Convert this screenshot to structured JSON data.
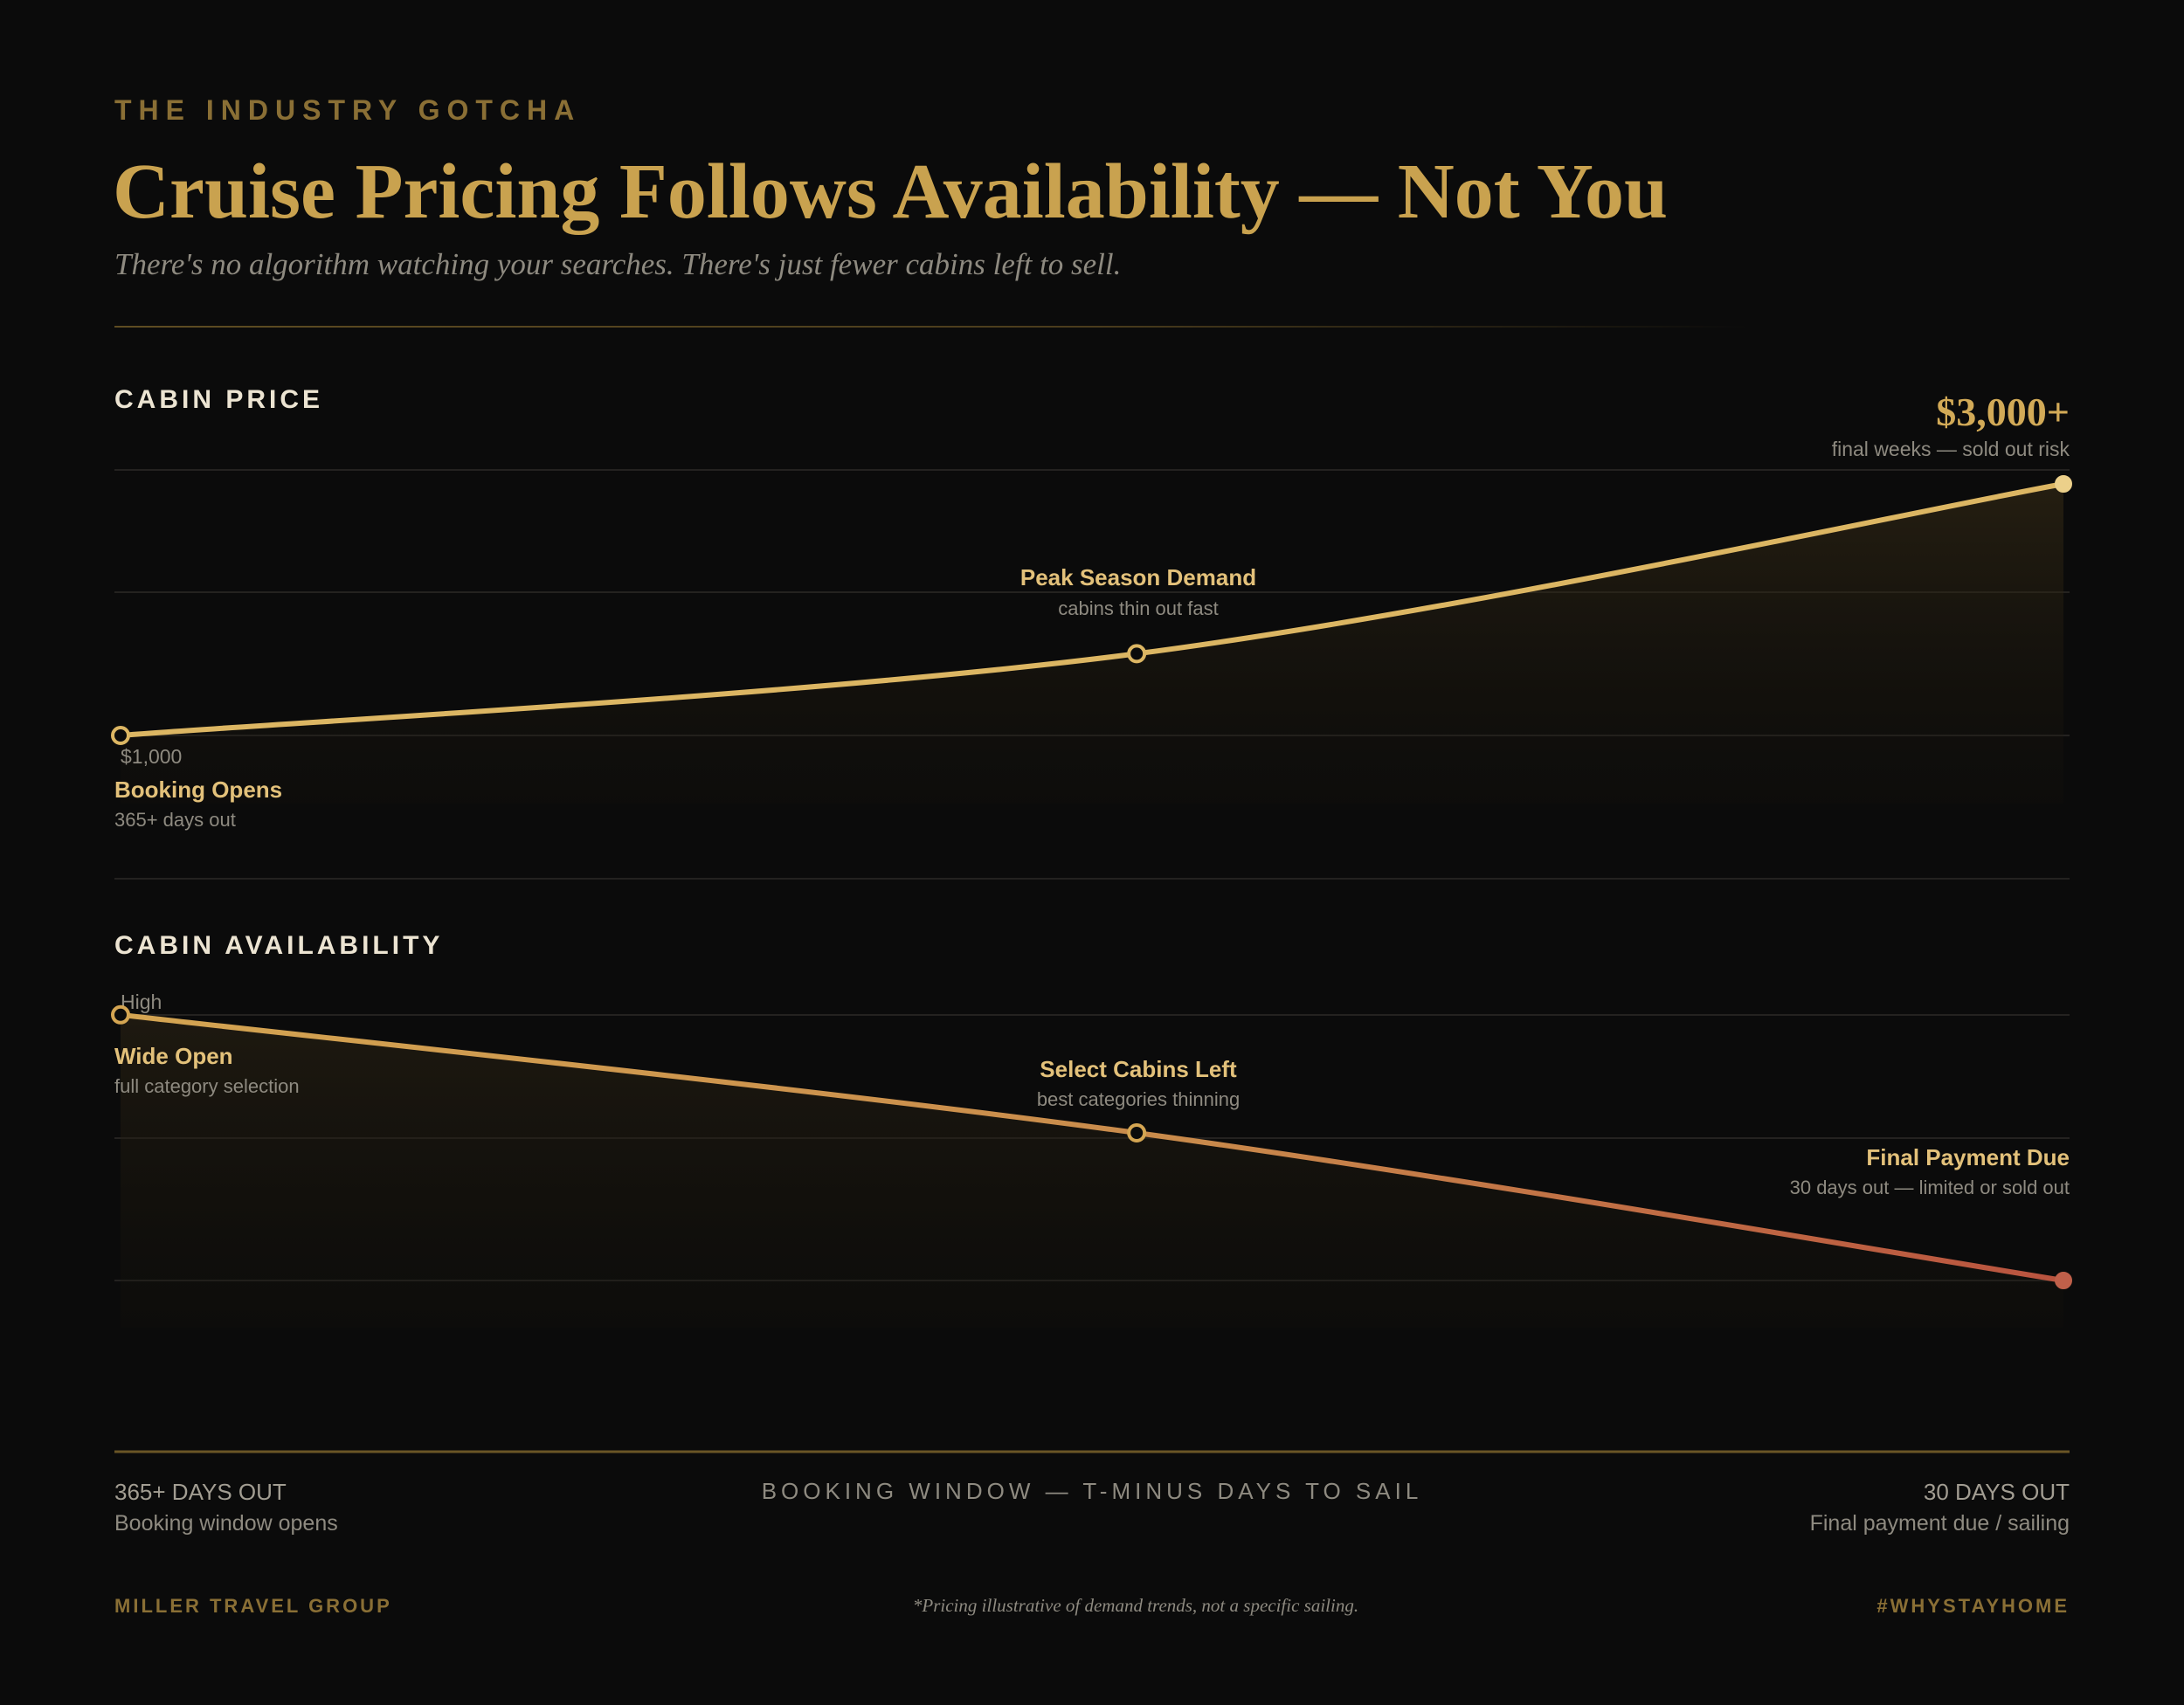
{
  "header": {
    "eyebrow": "THE INDUSTRY GOTCHA",
    "title": "Cruise Pricing Follows Availability — Not You",
    "subtitle": "There's no algorithm watching your searches. There's just fewer cabins left to sell."
  },
  "colors": {
    "gold": "#c9a24f",
    "gold_light": "#e3c17a",
    "rust": "#c0604a",
    "background": "#0b0b0b",
    "muted": "#8e8a80"
  },
  "chart_data": [
    {
      "type": "line",
      "title": "CABIN PRICE",
      "x": [
        0,
        0.523,
        1
      ],
      "values": [
        1000,
        1650,
        3000
      ],
      "y_tick_labels": {
        "low": "$1,000",
        "high_value": "$3,000+",
        "high_note": "final weeks — sold out risk"
      },
      "annotations": [
        {
          "label": "Booking Opens",
          "note": "365+ days out"
        },
        {
          "label": "Peak Season Demand",
          "note": "cabins thin out fast"
        }
      ],
      "grid": true
    },
    {
      "type": "line",
      "title": "CABIN AVAILABILITY",
      "x": [
        0,
        0.523,
        1
      ],
      "values": [
        0.9,
        0.5,
        0
      ],
      "y_tick_labels": {
        "high": "High"
      },
      "annotations": [
        {
          "label": "Wide Open",
          "note": "full category selection"
        },
        {
          "label": "Select Cabins Left",
          "note": "best categories thinning"
        },
        {
          "label": "Final Payment Due",
          "note": "30 days out — limited or sold out"
        }
      ],
      "grid": true
    }
  ],
  "x_axis": {
    "title": "BOOKING WINDOW — T-MINUS DAYS TO SAIL",
    "start_label": "365+ DAYS OUT",
    "start_note": "Booking window opens",
    "end_label": "30 DAYS OUT",
    "end_note": "Final payment due / sailing"
  },
  "footer": {
    "brand": "MILLER TRAVEL GROUP",
    "note": "*Pricing illustrative of demand trends, not a specific sailing.",
    "tag": "#WHYSTAYHOME"
  }
}
